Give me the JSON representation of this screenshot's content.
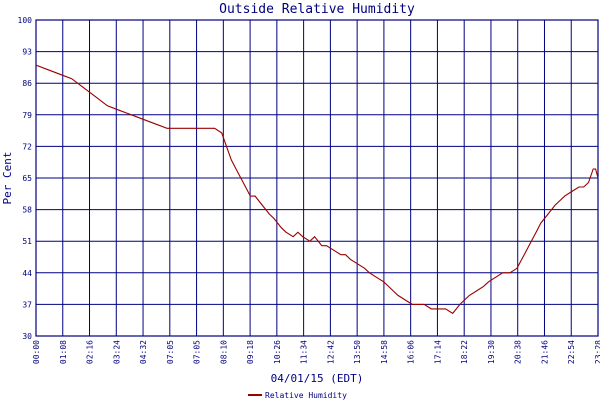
{
  "chart_data": {
    "type": "line",
    "title": "Outside Relative Humidity",
    "xlabel": "04/01/15 (EDT)",
    "ylabel": "Per Cent",
    "ylim": [
      30,
      100
    ],
    "yticks": [
      "30",
      "37",
      "44",
      "51",
      "58",
      "65",
      "72",
      "79",
      "86",
      "93",
      "100"
    ],
    "xticks": [
      "00:00",
      "01:08",
      "02:16",
      "03:24",
      "04:32",
      "07:05",
      "07:05",
      "08:10",
      "09:18",
      "10:26",
      "11:34",
      "12:42",
      "13:50",
      "14:58",
      "16:06",
      "17:14",
      "18:22",
      "19:30",
      "20:38",
      "21:46",
      "22:54",
      "23:28"
    ],
    "grid": true,
    "legend_position": "bottom-center",
    "colors": {
      "line": "#990000",
      "grid": "#000080",
      "axis": "#000080",
      "text": "#000080"
    },
    "series": [
      {
        "name": "Relative Humidity",
        "x": [
          0,
          0.5,
          1,
          1.5,
          2,
          2.5,
          3,
          3.5,
          4,
          4.5,
          5,
          5.5,
          6,
          6.5,
          7,
          7.5,
          7.8,
          8,
          8.2,
          8.5,
          8.8,
          9,
          9.2,
          9.5,
          9.8,
          10,
          10.3,
          10.5,
          10.8,
          11,
          11.2,
          11.5,
          11.7,
          12,
          12.2,
          12.5,
          12.8,
          13,
          13.2,
          13.5,
          13.8,
          14,
          14.3,
          14.6,
          15,
          15.2,
          15.5,
          15.8,
          16,
          16.3,
          16.6,
          17,
          17.2,
          17.5,
          17.8,
          18,
          18.2,
          18.5,
          18.8,
          19,
          19.3,
          19.6,
          19.9,
          20.2,
          20.4,
          20.6,
          20.8,
          21,
          21.2,
          21.5,
          21.8,
          22,
          22.2,
          22.5,
          22.8,
          23,
          23.2,
          23.4,
          23.5,
          23.6
        ],
        "y": [
          90,
          89,
          88,
          87,
          85,
          83,
          81,
          80,
          79,
          78,
          77,
          76,
          76,
          76,
          76,
          76,
          75,
          72,
          69,
          66,
          63,
          61,
          61,
          59,
          57,
          56,
          54,
          53,
          52,
          53,
          52,
          51,
          52,
          50,
          50,
          49,
          48,
          48,
          47,
          46,
          45,
          44,
          43,
          42,
          40,
          39,
          38,
          37,
          37,
          37,
          36,
          36,
          36,
          35,
          37,
          38,
          39,
          40,
          41,
          42,
          43,
          44,
          44,
          45,
          47,
          49,
          51,
          53,
          55,
          57,
          59,
          60,
          61,
          62,
          63,
          63,
          64,
          67,
          67,
          65
        ]
      }
    ]
  }
}
